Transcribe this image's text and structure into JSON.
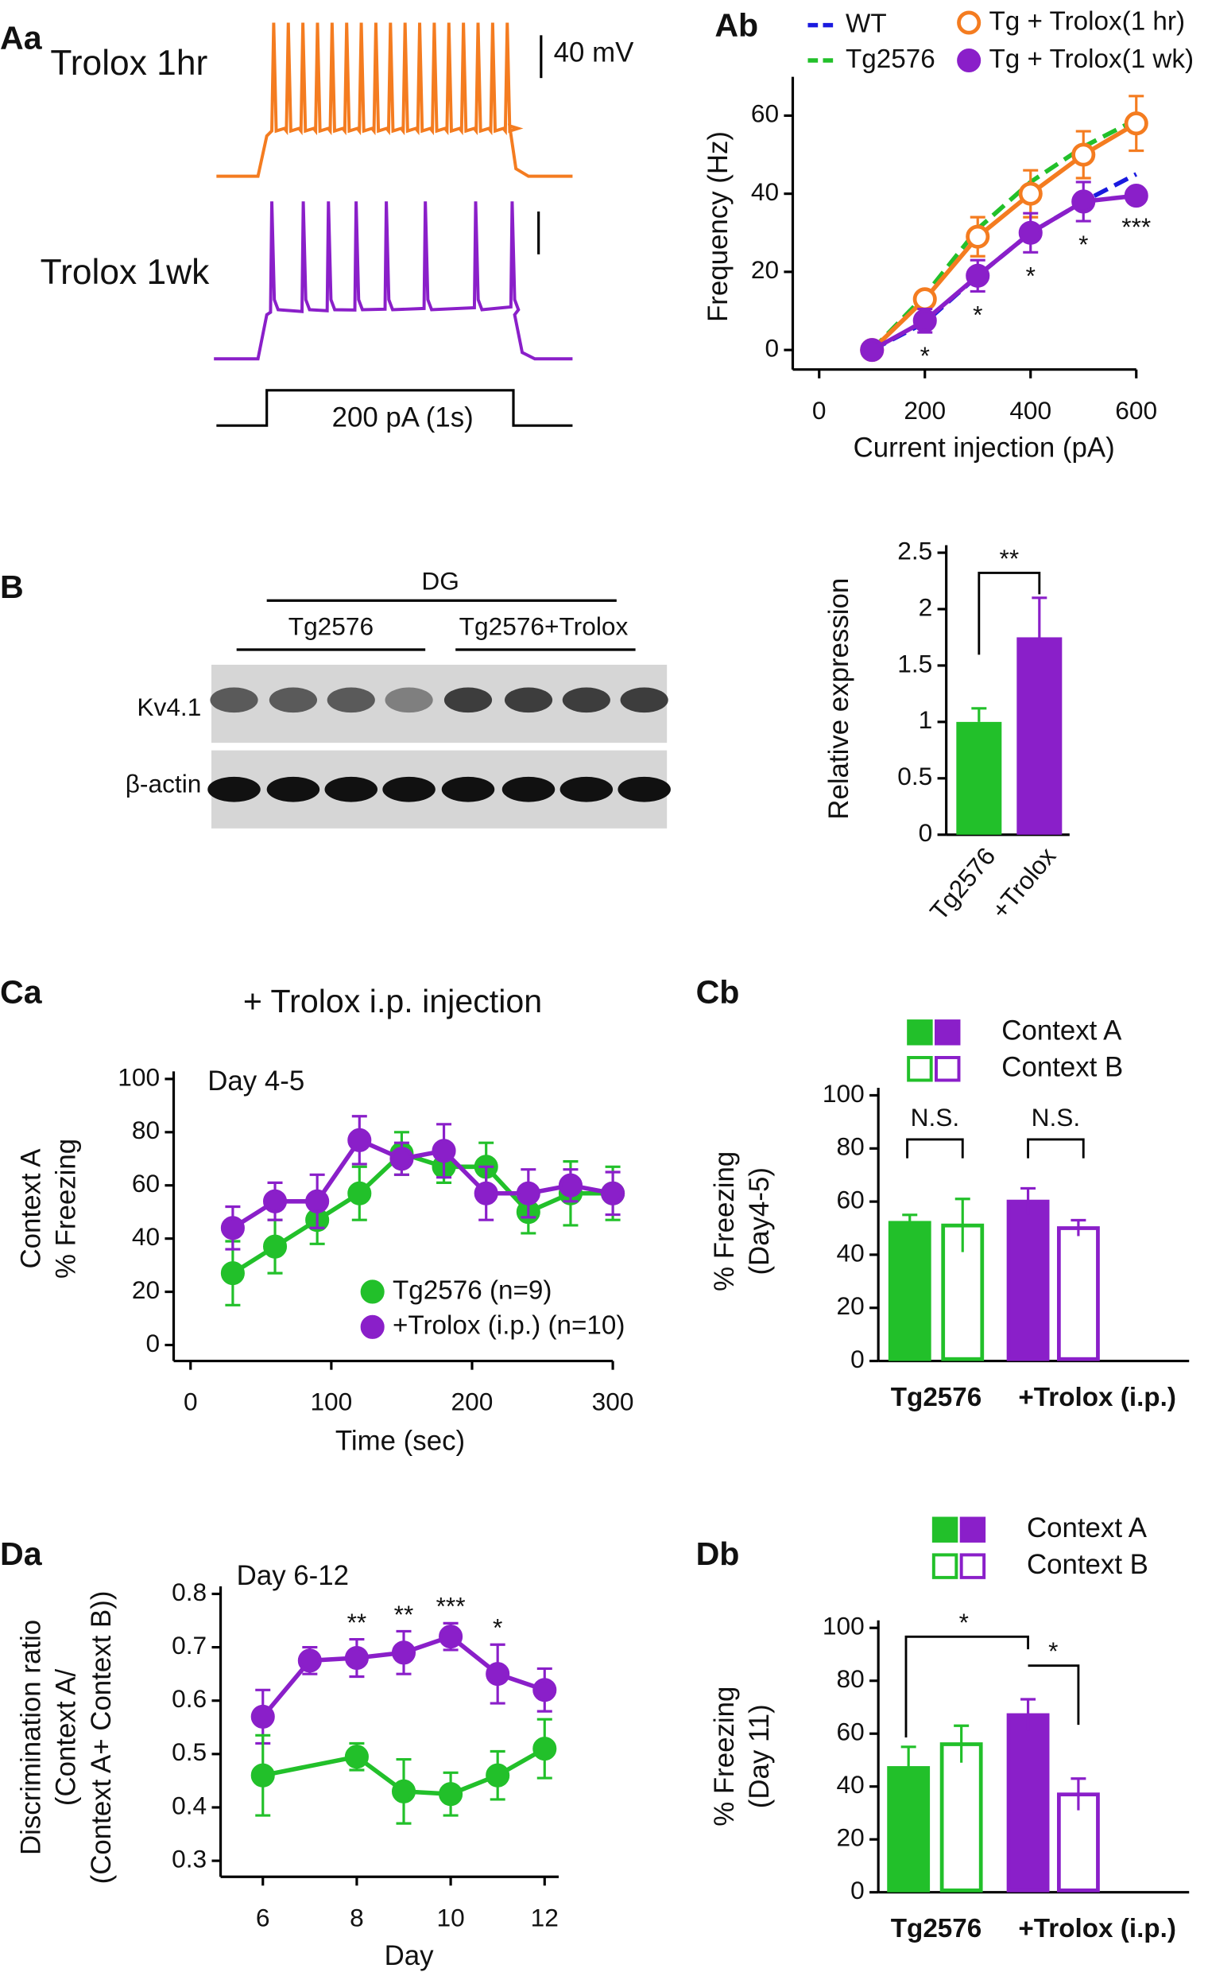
{
  "panel_labels": [
    "Aa",
    "Ab",
    "B",
    "Ca",
    "Cb",
    "Da",
    "Db"
  ],
  "traces": {
    "top_label": "Trolox 1hr",
    "bottom_label": "Trolox 1wk",
    "scale_label": "40 mV",
    "stimulus_label": "200 pA (1s)"
  },
  "blot": {
    "region": "DG",
    "groups": [
      "Tg2576",
      "Tg2576+Trolox"
    ],
    "rows": [
      "Kv4.1",
      "β-actin"
    ]
  },
  "chart_data": [
    {
      "type": "line",
      "ylabel": "Frequency (Hz)",
      "xlabel": "Current injection (pA)",
      "xlim": [
        -50,
        600
      ],
      "ylim": [
        -5,
        68
      ],
      "xticks": [
        0,
        200,
        400,
        600
      ],
      "yticks": [
        0,
        20,
        40,
        60
      ],
      "x": [
        100,
        200,
        300,
        400,
        500,
        600
      ],
      "series": [
        {
          "name": "WT",
          "color": "#1a1adf",
          "dash": true,
          "values": [
            0,
            7,
            19,
            30,
            38,
            45
          ]
        },
        {
          "name": "Tg2576",
          "color": "#22c02a",
          "dash": true,
          "values": [
            0,
            14,
            31,
            43,
            52,
            59
          ]
        },
        {
          "name": "Tg + Trolox(1 hr)",
          "color": "#f47c20",
          "marker": "open",
          "values": [
            0,
            13,
            29,
            40,
            50,
            58
          ],
          "errors": [
            0,
            2,
            5,
            6,
            6,
            7
          ]
        },
        {
          "name": "Tg + Trolox(1 wk)",
          "color": "#8a1fc9",
          "marker": "filled",
          "values": [
            0,
            7.5,
            19,
            30,
            38,
            39.5
          ],
          "errors": [
            0,
            3,
            4,
            5,
            5,
            2
          ]
        }
      ],
      "annotations": [
        {
          "x": 200,
          "text": "*"
        },
        {
          "x": 300,
          "text": "*"
        },
        {
          "x": 400,
          "text": "*"
        },
        {
          "x": 500,
          "text": "*"
        },
        {
          "x": 600,
          "text": "***"
        }
      ]
    },
    {
      "type": "bar",
      "ylabel": "Relative expression",
      "categories": [
        "Tg2576",
        "+Trolox"
      ],
      "values": [
        1,
        1.75
      ],
      "errors": [
        0.12,
        0.35
      ],
      "colors": [
        "#22c02a",
        "#8a1fc9"
      ],
      "ylim": [
        0,
        2.5
      ],
      "yticks": [
        0,
        0.5,
        1,
        1.5,
        2,
        2.5
      ],
      "significance": [
        "**"
      ]
    },
    {
      "type": "line",
      "title": "+ Trolox i.p. injection",
      "label": "Day 4-5",
      "ylabel": [
        "Context A",
        "% Freezing"
      ],
      "xlabel": "Time (sec)",
      "xlim": [
        -12,
        300
      ],
      "ylim": [
        -6,
        100
      ],
      "xticks": [
        0,
        100,
        200,
        300
      ],
      "yticks": [
        0,
        20,
        40,
        60,
        80,
        100
      ],
      "x": [
        30,
        60,
        90,
        120,
        150,
        180,
        210,
        240,
        270,
        300
      ],
      "series": [
        {
          "name": "Tg2576 (n=9)",
          "color": "#22c02a",
          "marker": "filled",
          "values": [
            27,
            37,
            47,
            57,
            72,
            67,
            67,
            50,
            57,
            57
          ],
          "errors": [
            12,
            10,
            9,
            10,
            8,
            6,
            9,
            8,
            12,
            10
          ]
        },
        {
          "name": "+Trolox (i.p.) (n=10)",
          "color": "#8a1fc9",
          "marker": "filled",
          "values": [
            44,
            54,
            54,
            77,
            70,
            73,
            57,
            57,
            60,
            57
          ],
          "errors": [
            8,
            7,
            10,
            9,
            6,
            10,
            10,
            9,
            6,
            8
          ]
        }
      ]
    },
    {
      "type": "grouped_bar",
      "ylabel": [
        "% Freezing",
        "(Day4-5)"
      ],
      "categories": [
        "Tg2576",
        "+Trolox (i.p.)"
      ],
      "colors": [
        "#22c02a",
        "#8a1fc9"
      ],
      "ylim": [
        0,
        100
      ],
      "yticks": [
        0,
        20,
        40,
        60,
        80,
        100
      ],
      "series": [
        {
          "name": "Context A",
          "fill": true,
          "values": [
            52,
            60
          ],
          "errors": [
            3,
            5
          ]
        },
        {
          "name": "Context B",
          "fill": false,
          "values": [
            51,
            50
          ],
          "errors": [
            10,
            3
          ]
        }
      ],
      "significance": [
        "N.S.",
        "N.S."
      ]
    },
    {
      "type": "line",
      "label": "Day 6-12",
      "ylabel": [
        "Discrimination ratio",
        "(Context A/",
        "(Context A+ Context B))"
      ],
      "xlabel": "Day",
      "xlim": [
        5.1,
        12.3
      ],
      "ylim": [
        0.27,
        0.8
      ],
      "xticks": [
        6,
        8,
        10,
        12
      ],
      "yticks": [
        0.3,
        0.4,
        0.5,
        0.6,
        0.7,
        0.8
      ],
      "series": [
        {
          "color": "#8a1fc9",
          "marker": "filled",
          "x": [
            6,
            7,
            8,
            9,
            10,
            11,
            12
          ],
          "values": [
            0.57,
            0.675,
            0.68,
            0.69,
            0.72,
            0.65,
            0.62
          ],
          "errors": [
            0.05,
            0.025,
            0.035,
            0.04,
            0.025,
            0.055,
            0.04
          ]
        },
        {
          "color": "#22c02a",
          "marker": "filled",
          "x": [
            6,
            8,
            9,
            10,
            11,
            12
          ],
          "values": [
            0.46,
            0.495,
            0.43,
            0.425,
            0.46,
            0.51
          ],
          "errors": [
            0.075,
            0.025,
            0.06,
            0.04,
            0.045,
            0.055
          ]
        }
      ],
      "annotations": [
        {
          "x": 8,
          "text": "**"
        },
        {
          "x": 9,
          "text": "**"
        },
        {
          "x": 10,
          "text": "***"
        },
        {
          "x": 11,
          "text": "*"
        }
      ]
    },
    {
      "type": "grouped_bar",
      "ylabel": [
        "% Freezing",
        "(Day 11)"
      ],
      "categories": [
        "Tg2576",
        "+Trolox (i.p.)"
      ],
      "colors": [
        "#22c02a",
        "#8a1fc9"
      ],
      "ylim": [
        0,
        100
      ],
      "yticks": [
        0,
        20,
        40,
        60,
        80,
        100
      ],
      "series": [
        {
          "name": "Context A",
          "fill": true,
          "values": [
            47,
            67
          ],
          "errors": [
            8,
            6
          ]
        },
        {
          "name": "Context B",
          "fill": false,
          "values": [
            56,
            37
          ],
          "errors": [
            7,
            6
          ]
        }
      ],
      "significance": [
        "*",
        "*"
      ]
    }
  ]
}
